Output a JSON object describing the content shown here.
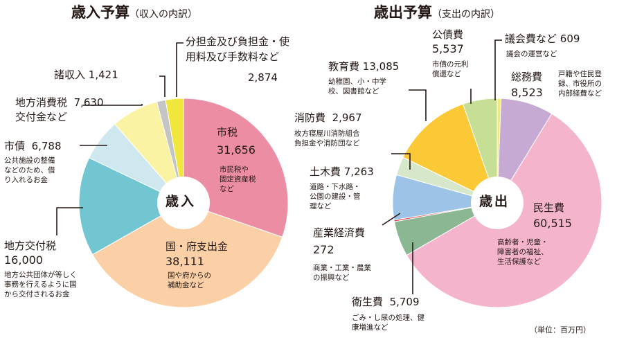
{
  "revenue": {
    "title": "歳入予算",
    "subtitle": "（収入の内訳）",
    "center_label": "歳入",
    "items": [
      {
        "name": "市税",
        "value": "31,656",
        "desc": [
          "市民税や",
          "固定資産税",
          "など"
        ]
      },
      {
        "name": "国・府支出金",
        "value": "38,111",
        "desc": [
          "国や府からの",
          "補助金など"
        ]
      },
      {
        "name": "地方交付税",
        "value": "16,000",
        "desc": [
          "地方公共団体が等しく",
          "事務を行えるように国",
          "から交付されるお金"
        ]
      },
      {
        "name": "市債",
        "value": "6,788",
        "desc": [
          "公共施設の整備",
          "などのため、借",
          "り入れるお金"
        ]
      },
      {
        "name": [
          "地方消費税",
          "交付金など"
        ],
        "value": "7,630"
      },
      {
        "name": "諸収入",
        "value": "1,421"
      },
      {
        "name": [
          "分担金及び負担金・使",
          "用料及び手数料など"
        ],
        "value": "2,874"
      }
    ]
  },
  "expenditure": {
    "title": "歳出予算",
    "subtitle": "（支出の内訳）",
    "center_label": "歳出",
    "items": [
      {
        "name": "議会費など",
        "value": "609",
        "desc": [
          "議会の運営など"
        ]
      },
      {
        "name": "総務費",
        "value": "8,523",
        "desc": [
          "戸籍や住民登",
          "録、市役所の",
          "内部経費など"
        ]
      },
      {
        "name": "民生費",
        "value": "60,515",
        "desc": [
          "高齢者・児童・",
          "障害者の福祉、",
          "生活保護など"
        ]
      },
      {
        "name": "衛生費",
        "value": "5,709",
        "desc": [
          "ごみ・し尿の処理、健",
          "康増進など"
        ]
      },
      {
        "name": "産業経済費",
        "value": "272",
        "desc": [
          "商業・工業・農業",
          "の振興など"
        ]
      },
      {
        "name": "土木費",
        "value": "7,263",
        "desc": [
          "道路・下水路・",
          "公園の建設・管",
          "理など"
        ]
      },
      {
        "name": "消防費",
        "value": "2,967",
        "desc": [
          "枚方寝屋川消防組合",
          "負担金や消防団など"
        ]
      },
      {
        "name": "教育費",
        "value": "13,085",
        "desc": [
          "幼稚園、小・中学",
          "校、図書館など"
        ]
      },
      {
        "name": "公債費",
        "value": "5,537",
        "desc": [
          "市債の元利",
          "償還など"
        ]
      }
    ]
  },
  "unit_note": "（単位：百万円）",
  "chart_data": [
    {
      "type": "pie",
      "title": "歳入予算（収入の内訳）",
      "unit": "百万円",
      "start": "top, clockwise",
      "labels": [
        "市税",
        "国・府支出金",
        "地方交付税",
        "市債",
        "地方消費税交付金など",
        "諸収入",
        "分担金及び負担金・使用料及び手数料など"
      ],
      "values": [
        31656,
        38111,
        16000,
        6788,
        7630,
        1421,
        2874
      ],
      "colors": [
        "#ec8da4",
        "#fbd0a6",
        "#71c6d2",
        "#cfe7ef",
        "#fbf3a4",
        "#c4c4c4",
        "#f0e63c"
      ]
    },
    {
      "type": "pie",
      "title": "歳出予算（支出の内訳）",
      "unit": "百万円",
      "start": "top, clockwise",
      "labels": [
        "議会費など",
        "総務費",
        "民生費",
        "衛生費",
        "産業経済費",
        "土木費",
        "消防費",
        "教育費",
        "公債費"
      ],
      "values": [
        609,
        8523,
        60515,
        5709,
        272,
        7263,
        2967,
        13085,
        5537
      ],
      "colors": [
        "#f3eb6a",
        "#c7aad4",
        "#f3b4cc",
        "#8bb792",
        "#e8434b",
        "#9dc4e6",
        "#d6e8c9",
        "#fbc935",
        "#c6df95"
      ]
    }
  ]
}
